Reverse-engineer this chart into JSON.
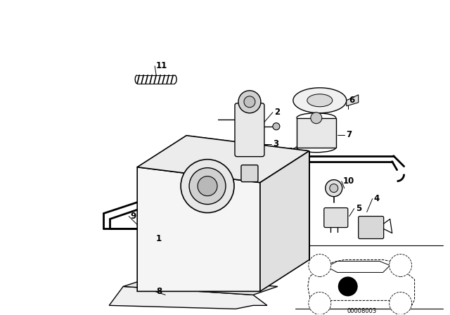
{
  "bg_color": "#ffffff",
  "line_color": "#000000",
  "fig_width": 6.4,
  "fig_height": 4.48,
  "dpi": 100,
  "watermark": "00008003"
}
